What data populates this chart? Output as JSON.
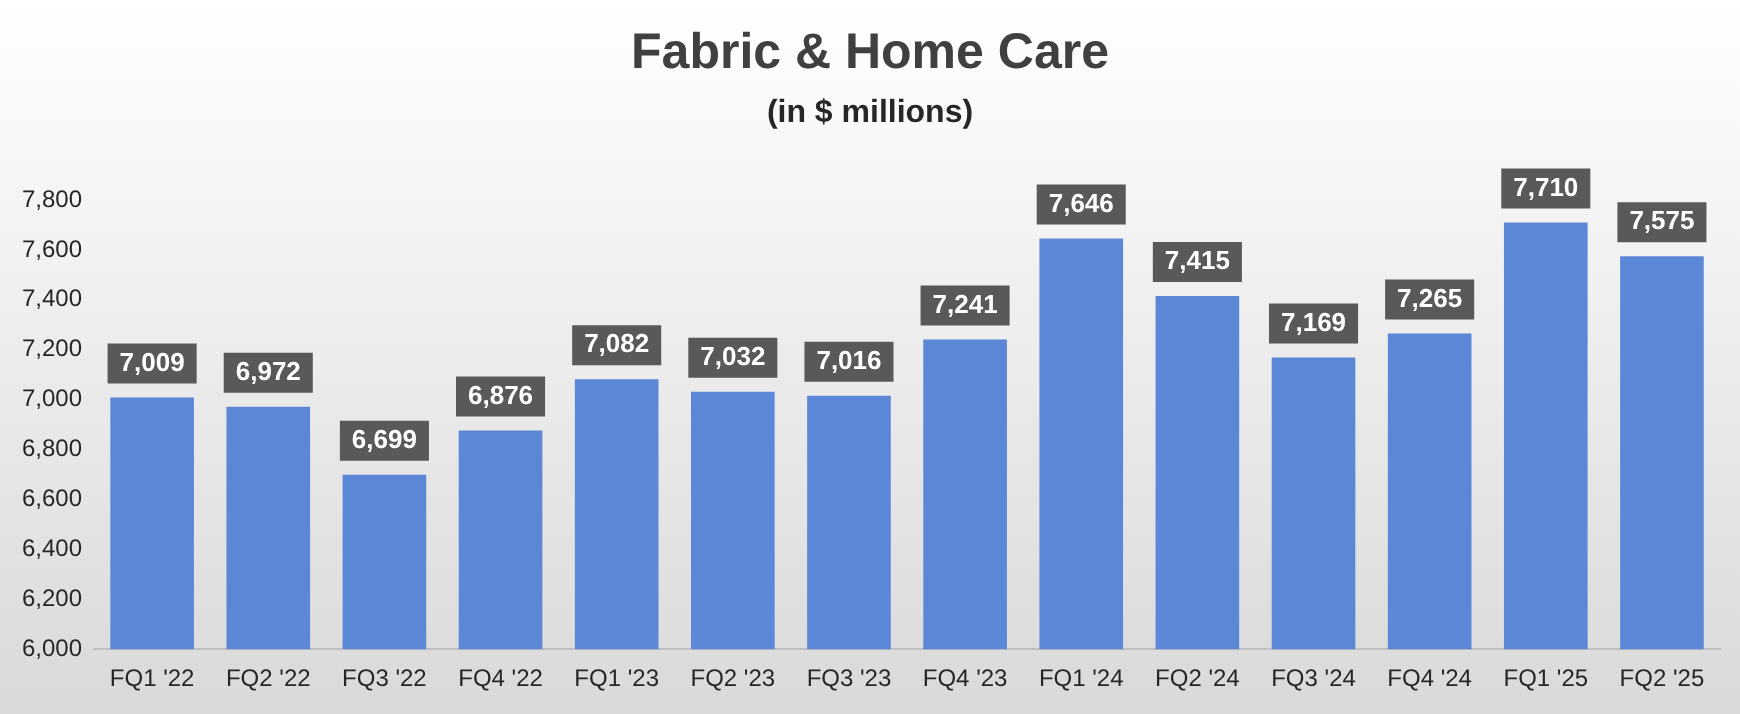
{
  "chart_data": {
    "type": "bar",
    "title": "Fabric & Home Care",
    "subtitle": "(in $ millions)",
    "categories": [
      "FQ1 '22",
      "FQ2 '22",
      "FQ3 '22",
      "FQ4 '22",
      "FQ1 '23",
      "FQ2 '23",
      "FQ3 '23",
      "FQ4 '23",
      "FQ1 '24",
      "FQ2 '24",
      "FQ3 '24",
      "FQ4 '24",
      "FQ1 '25",
      "FQ2 '25"
    ],
    "values": [
      7009,
      6972,
      6699,
      6876,
      7082,
      7032,
      7016,
      7241,
      7646,
      7415,
      7169,
      7265,
      7710,
      7575
    ],
    "color": "#5b87d6",
    "ylim": [
      6000,
      7800
    ],
    "yticks": [
      {
        "value": 6000,
        "label": "6,000"
      },
      {
        "value": 6200,
        "label": "6,200"
      },
      {
        "value": 6400,
        "label": "6,400"
      },
      {
        "value": 6600,
        "label": "6,600"
      },
      {
        "value": 6800,
        "label": "6,800"
      },
      {
        "value": 7000,
        "label": "7,000"
      },
      {
        "value": 7200,
        "label": "7,200"
      },
      {
        "value": 7400,
        "label": "7,400"
      },
      {
        "value": 7600,
        "label": "7,600"
      },
      {
        "value": 7800,
        "label": "7,800"
      }
    ],
    "value_labels": [
      "7,009",
      "6,972",
      "6,699",
      "6,876",
      "7,082",
      "7,032",
      "7,016",
      "7,241",
      "7,646",
      "7,415",
      "7,169",
      "7,265",
      "7,710",
      "7,575"
    ],
    "legend": false,
    "grid": false
  }
}
